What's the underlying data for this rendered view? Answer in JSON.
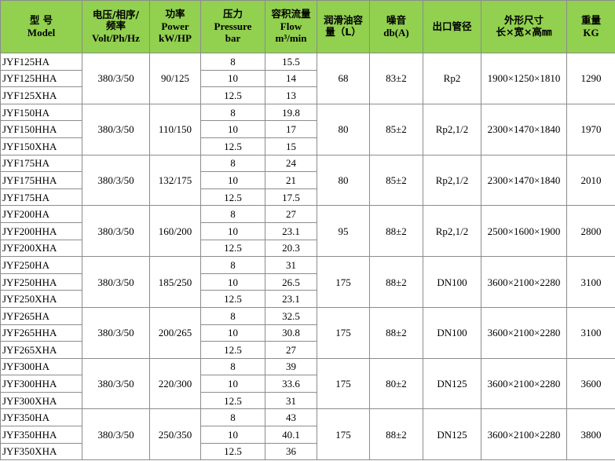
{
  "header": [
    [
      "型 号",
      "Model"
    ],
    [
      "电压/相序/",
      "频率",
      "Volt/Ph/Hz"
    ],
    [
      "功率",
      "Power",
      "kW/HP"
    ],
    [
      "压力",
      "Pressure",
      "bar"
    ],
    [
      "容积流量",
      "Flow",
      "m³/min"
    ],
    [
      "润滑油容",
      "量（L）"
    ],
    [
      "噪音",
      "db(A)"
    ],
    [
      "出口管径"
    ],
    [
      "外形尺寸",
      "长×宽×高㎜"
    ],
    [
      "重量",
      "KG"
    ]
  ],
  "groups": [
    {
      "models": [
        "JYF125HA",
        "JYF125HHA",
        "JYF125XHA"
      ],
      "voltage": "380/3/50",
      "power": "90/125",
      "pressure": [
        8,
        10,
        12.5
      ],
      "flow": [
        15.5,
        14,
        13
      ],
      "oil": 68,
      "noise": "83±2",
      "outlet": "Rp2",
      "dimensions": "1900×1250×1810",
      "weight": 1290
    },
    {
      "models": [
        "JYF150HA",
        "JYF150HHA",
        "JYF150XHA"
      ],
      "voltage": "380/3/50",
      "power": "110/150",
      "pressure": [
        8,
        10,
        12.5
      ],
      "flow": [
        19.8,
        17,
        15
      ],
      "oil": 80,
      "noise": "85±2",
      "outlet": "Rp2,1/2",
      "dimensions": "2300×1470×1840",
      "weight": 1970
    },
    {
      "models": [
        "JYF175HA",
        "JYF175HHA",
        "JYF175HA"
      ],
      "voltage": "380/3/50",
      "power": "132/175",
      "pressure": [
        8,
        10,
        12.5
      ],
      "flow": [
        24,
        21,
        17.5
      ],
      "oil": 80,
      "noise": "85±2",
      "outlet": "Rp2,1/2",
      "dimensions": "2300×1470×1840",
      "weight": 2010
    },
    {
      "models": [
        "JYF200HA",
        "JYF200HHA",
        "JYF200XHA"
      ],
      "voltage": "380/3/50",
      "power": "160/200",
      "pressure": [
        8,
        10,
        12.5
      ],
      "flow": [
        27,
        23.1,
        20.3
      ],
      "oil": 95,
      "noise": "88±2",
      "outlet": "Rp2,1/2",
      "dimensions": "2500×1600×1900",
      "weight": 2800
    },
    {
      "models": [
        "JYF250HA",
        "JYF250HHA",
        "JYF250XHA"
      ],
      "voltage": "380/3/50",
      "power": "185/250",
      "pressure": [
        8,
        10,
        12.5
      ],
      "flow": [
        31,
        26.5,
        23.1
      ],
      "oil": 175,
      "noise": "88±2",
      "outlet": "DN100",
      "dimensions": "3600×2100×2280",
      "weight": 3100
    },
    {
      "models": [
        "JYF265HA",
        "JYF265HHA",
        "JYF265XHA"
      ],
      "voltage": "380/3/50",
      "power": "200/265",
      "pressure": [
        8,
        10,
        12.5
      ],
      "flow": [
        32.5,
        30.8,
        27
      ],
      "oil": 175,
      "noise": "88±2",
      "outlet": "DN100",
      "dimensions": "3600×2100×2280",
      "weight": 3100
    },
    {
      "models": [
        "JYF300HA",
        "JYF300HHA",
        "JYF300XHA"
      ],
      "voltage": "380/3/50",
      "power": "220/300",
      "pressure": [
        8,
        10,
        12.5
      ],
      "flow": [
        39,
        33.6,
        31
      ],
      "oil": 175,
      "noise": "80±2",
      "outlet": "DN125",
      "dimensions": "3600×2100×2280",
      "weight": 3600
    },
    {
      "models": [
        "JYF350HA",
        "JYF350HHA",
        "JYF350XHA"
      ],
      "voltage": "380/3/50",
      "power": "250/350",
      "pressure": [
        8,
        10,
        12.5
      ],
      "flow": [
        43,
        40.1,
        36
      ],
      "oil": 175,
      "noise": "88±2",
      "outlet": "DN125",
      "dimensions": "3600×2100×2280",
      "weight": 3800
    }
  ]
}
